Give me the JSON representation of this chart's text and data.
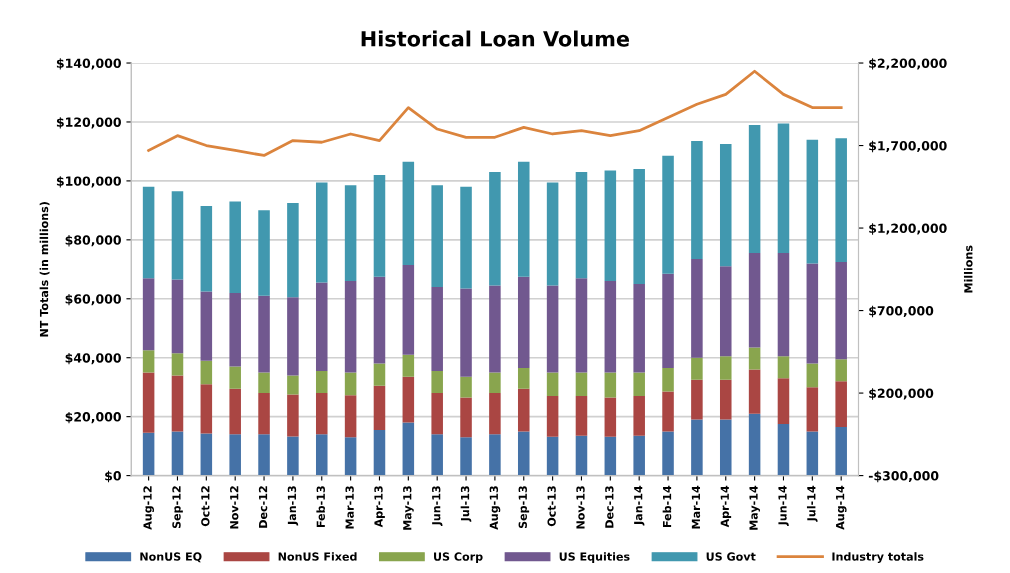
{
  "chart_data": {
    "type": "bar",
    "title": "Historical Loan Volume",
    "ylabel": "NT Totals (in millions)",
    "y2label": "Millions",
    "stacked": true,
    "grid": "y",
    "legend": "bottom",
    "categories": [
      "Aug-12",
      "Sep-12",
      "Oct-12",
      "Nov-12",
      "Dec-12",
      "Jan-13",
      "Feb-13",
      "Mar-13",
      "Apr-13",
      "May-13",
      "Jun-13",
      "Jul-13",
      "Aug-13",
      "Sep-13",
      "Oct-13",
      "Nov-13",
      "Dec-13",
      "Jan-14",
      "Feb-14",
      "Mar-14",
      "Apr-14",
      "May-14",
      "Jun-14",
      "Jul-14",
      "Aug-14"
    ],
    "series": [
      {
        "name": "NonUS EQ",
        "color": "#4572a7",
        "values": [
          14500,
          15000,
          14300,
          14000,
          14000,
          13300,
          14000,
          13000,
          15500,
          18000,
          14000,
          13000,
          14000,
          15000,
          13200,
          13500,
          13200,
          13500,
          15000,
          19000,
          19000,
          21000,
          17500,
          15000,
          16500
        ]
      },
      {
        "name": "NonUS Fixed",
        "color": "#aa4643",
        "values": [
          20500,
          19000,
          16700,
          15500,
          14000,
          14200,
          14000,
          14300,
          15000,
          15500,
          14000,
          13500,
          14000,
          14500,
          13800,
          13500,
          13300,
          13500,
          13500,
          13500,
          13500,
          15000,
          15500,
          15000,
          15500
        ]
      },
      {
        "name": "US Corp",
        "color": "#89a54e",
        "values": [
          7500,
          7500,
          8000,
          7500,
          7000,
          6500,
          7500,
          7700,
          7500,
          7500,
          7500,
          7000,
          7000,
          7000,
          8000,
          8000,
          8500,
          8000,
          8000,
          7500,
          8000,
          7500,
          7500,
          8000,
          7500
        ]
      },
      {
        "name": "US Equities",
        "color": "#71588f",
        "values": [
          24500,
          25000,
          23500,
          25000,
          26000,
          26500,
          30000,
          31000,
          29500,
          30500,
          28500,
          30000,
          29500,
          31000,
          29500,
          32000,
          31000,
          30000,
          32000,
          33500,
          30500,
          32000,
          35000,
          34000,
          33000
        ]
      },
      {
        "name": "US Govt",
        "color": "#4198af",
        "values": [
          31000,
          30000,
          29000,
          31000,
          29000,
          32000,
          34000,
          32500,
          34500,
          35000,
          34500,
          34500,
          38500,
          39000,
          35000,
          36000,
          37500,
          39000,
          40000,
          40000,
          41500,
          43500,
          44000,
          42000,
          42000
        ]
      },
      {
        "name": "Industry totals",
        "type": "line",
        "axis": "y2",
        "color": "#db843d",
        "marker": "none",
        "values": [
          1670000,
          1760000,
          1700000,
          1670000,
          1640000,
          1730000,
          1720000,
          1770000,
          1730000,
          1930000,
          1800000,
          1750000,
          1750000,
          1810000,
          1770000,
          1790000,
          1760000,
          1790000,
          1870000,
          1950000,
          2010000,
          2150000,
          2010000,
          1930000,
          1930000
        ]
      }
    ],
    "ylim": [
      0,
      140000
    ],
    "yticks": [
      {
        "value": 0,
        "label": "$0"
      },
      {
        "value": 20000,
        "label": "$20,000"
      },
      {
        "value": 40000,
        "label": "$40,000"
      },
      {
        "value": 60000,
        "label": "$60,000"
      },
      {
        "value": 80000,
        "label": "$80,000"
      },
      {
        "value": 100000,
        "label": "$100,000"
      },
      {
        "value": 120000,
        "label": "$120,000"
      },
      {
        "value": 140000,
        "label": "$140,000"
      }
    ],
    "y2lim": [
      -300000,
      2200000
    ],
    "y2ticks": [
      {
        "value": -300000,
        "label": "-$300,000"
      },
      {
        "value": 200000,
        "label": "$200,000"
      },
      {
        "value": 700000,
        "label": "$700,000"
      },
      {
        "value": 1200000,
        "label": "$1,200,000"
      },
      {
        "value": 1700000,
        "label": "$1,700,000"
      },
      {
        "value": 2200000,
        "label": "$2,200,000"
      }
    ]
  }
}
